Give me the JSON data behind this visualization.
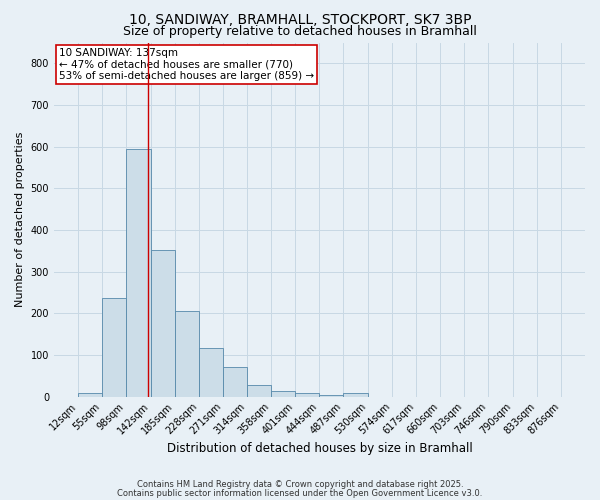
{
  "title1": "10, SANDIWAY, BRAMHALL, STOCKPORT, SK7 3BP",
  "title2": "Size of property relative to detached houses in Bramhall",
  "xlabel": "Distribution of detached houses by size in Bramhall",
  "ylabel": "Number of detached properties",
  "bin_edges": [
    12,
    55,
    98,
    142,
    185,
    228,
    271,
    314,
    358,
    401,
    444,
    487,
    530,
    574,
    617,
    660,
    703,
    746,
    790,
    833,
    876
  ],
  "bar_heights": [
    8,
    238,
    595,
    352,
    205,
    117,
    72,
    27,
    14,
    8,
    5,
    8,
    0,
    0,
    0,
    0,
    0,
    0,
    0,
    0
  ],
  "bar_color": "#ccdde8",
  "bar_edgecolor": "#5588aa",
  "grid_color": "#c8d8e4",
  "property_line_x": 137,
  "property_line_color": "#cc0000",
  "annotation_text": "10 SANDIWAY: 137sqm\n← 47% of detached houses are smaller (770)\n53% of semi-detached houses are larger (859) →",
  "annotation_box_color": "white",
  "annotation_box_edgecolor": "#cc0000",
  "ylim": [
    0,
    850
  ],
  "yticks": [
    0,
    100,
    200,
    300,
    400,
    500,
    600,
    700,
    800
  ],
  "bg_color": "#e8f0f6",
  "footer1": "Contains HM Land Registry data © Crown copyright and database right 2025.",
  "footer2": "Contains public sector information licensed under the Open Government Licence v3.0.",
  "title_fontsize": 10,
  "subtitle_fontsize": 9,
  "xlabel_fontsize": 8.5,
  "ylabel_fontsize": 8,
  "tick_fontsize": 7,
  "annotation_fontsize": 7.5,
  "footer_fontsize": 6
}
